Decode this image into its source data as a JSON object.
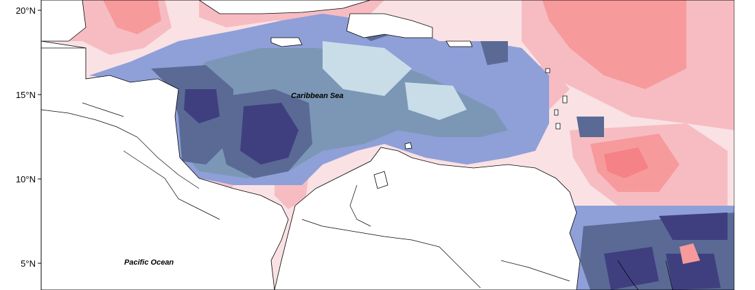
{
  "map": {
    "latitude_labels": [
      {
        "label": "20°N",
        "lat": 20
      },
      {
        "label": "15°N",
        "lat": 15
      },
      {
        "label": "10°N",
        "lat": 10
      },
      {
        "label": "5°N",
        "lat": 5
      }
    ],
    "place_labels": {
      "caribbean": "Caribbean Sea",
      "pacific": "Pacific Ocean"
    },
    "colors": {
      "dark_navy": "#3f3f80",
      "slate": "#5a6a95",
      "steel_blue": "#7b97b5",
      "periwinkle": "#8f9fd8",
      "pale_blue": "#c8dde8",
      "pale_pink": "#f9e1e4",
      "light_pink": "#f6bcc2",
      "salmon": "#f79a9c",
      "red": "#f58286",
      "land": "#ffffff",
      "coastline": "#000000"
    }
  }
}
